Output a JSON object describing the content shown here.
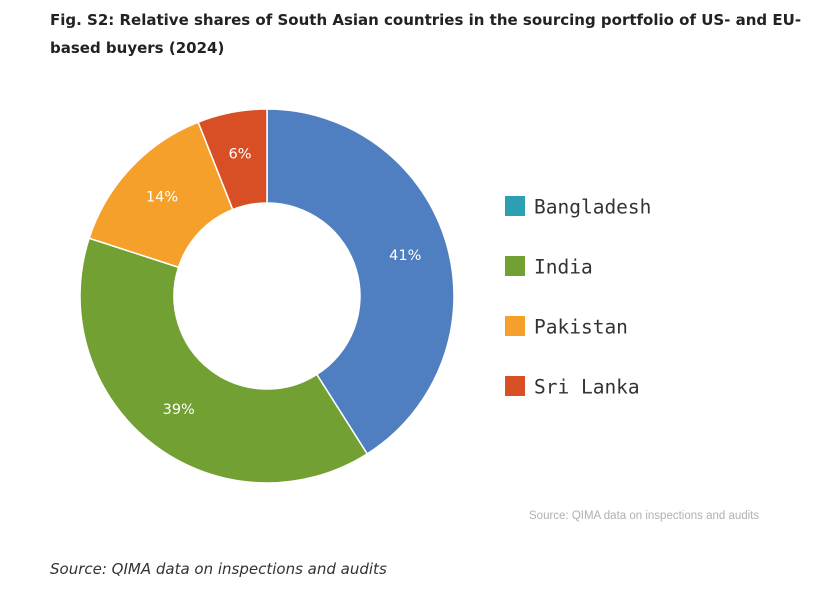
{
  "chart_data": {
    "type": "pie",
    "title": "Fig. S2: Relative shares of South Asian countries in the sourcing portfolio of US- and EU-based buyers (2024)",
    "categories": [
      "Bangladesh",
      "India",
      "Pakistan",
      "Sri Lanka"
    ],
    "values": [
      41,
      39,
      14,
      6
    ],
    "labels": [
      "41%",
      "39%",
      "14%",
      "6%"
    ],
    "unit": "%",
    "donut": true,
    "legend_position": "right",
    "legend_colors": [
      "#2c9fb3",
      "#73a032",
      "#f6a02c",
      "#d84f25"
    ],
    "slice_colors": [
      "#4f7fc0",
      "#73a032",
      "#f6a02c",
      "#d84f25"
    ],
    "inner_source": "Source: QIMA data on inspections and audits"
  },
  "footer": {
    "source": "Source: QIMA data on inspections and audits"
  }
}
